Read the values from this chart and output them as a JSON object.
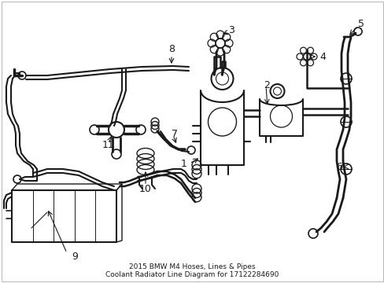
{
  "bg_color": "#ffffff",
  "line_color": "#1a1a1a",
  "title_line1": "2015 BMW M4 Hoses, Lines & Pipes",
  "title_line2": "Coolant Radiator Line Diagram for 17122284690",
  "title_fontsize": 6.5,
  "label_fontsize": 8.5
}
